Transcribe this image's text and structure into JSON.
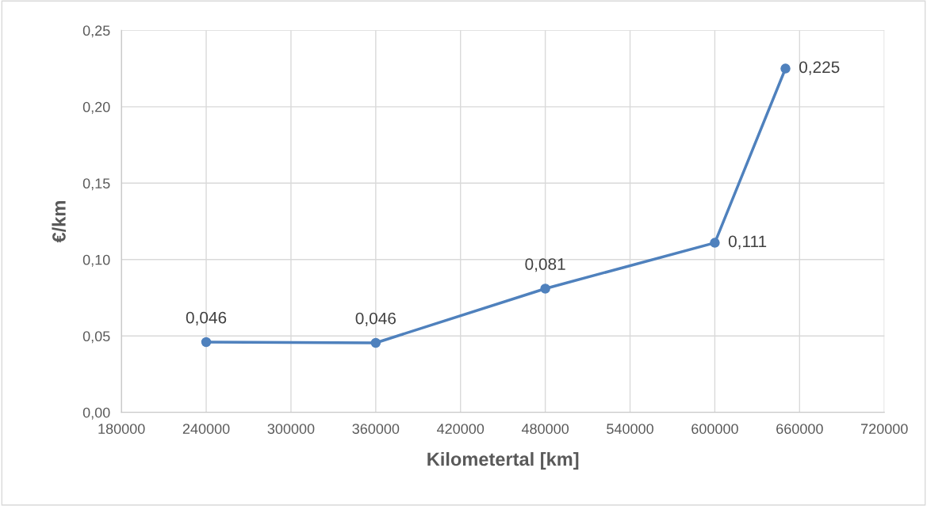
{
  "chart_data": {
    "type": "line",
    "xlabel": "Kilometertal [km]",
    "ylabel": "€/km",
    "x": [
      240000,
      360000,
      480000,
      600000,
      650000
    ],
    "series": [
      {
        "color": "#4f81bd",
        "values": [
          0.046,
          0.0455,
          0.081,
          0.111,
          0.225
        ],
        "value_labels": [
          "0,046",
          "0,046",
          "0,081",
          "0,111",
          "0,225"
        ]
      }
    ],
    "xlim": [
      180000,
      720000
    ],
    "xticks": [
      180000,
      240000,
      300000,
      360000,
      420000,
      480000,
      540000,
      600000,
      660000,
      720000
    ],
    "ylim": [
      0,
      0.25
    ],
    "yticks": [
      {
        "value": 0,
        "label": "0,00"
      },
      {
        "value": 0.05,
        "label": "0,05"
      },
      {
        "value": 0.1,
        "label": "0,10"
      },
      {
        "value": 0.15,
        "label": "0,15"
      },
      {
        "value": 0.2,
        "label": "0,20"
      },
      {
        "value": 0.25,
        "label": "0,25"
      }
    ],
    "grid": true,
    "marker": "circle",
    "line_style": "solid",
    "legend": false
  }
}
